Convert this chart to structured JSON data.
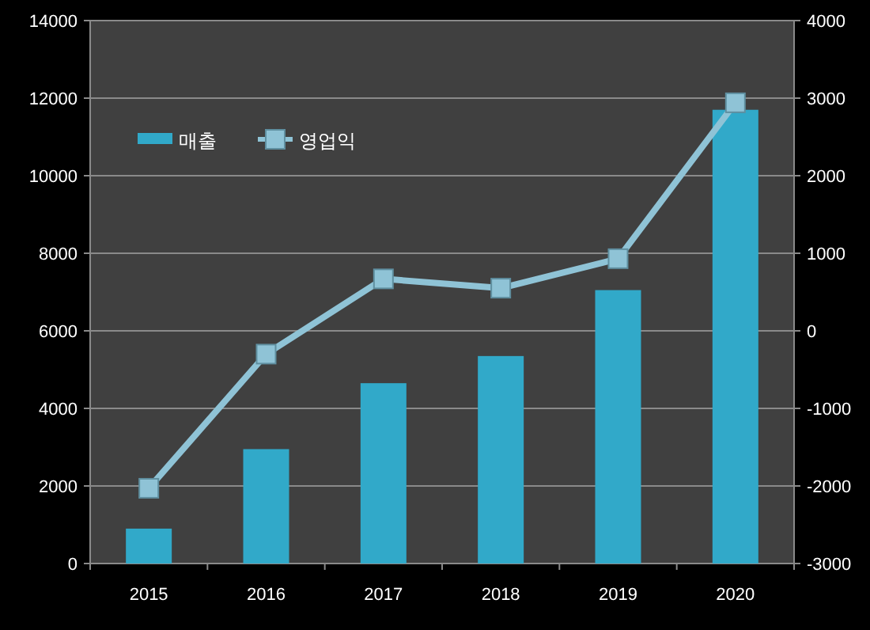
{
  "chart_data": {
    "type": "bar",
    "categories": [
      "2015",
      "2016",
      "2017",
      "2018",
      "2019",
      "2020"
    ],
    "series": [
      {
        "name": "매출",
        "color": "#31a9c9",
        "values": [
          900,
          2950,
          4650,
          5350,
          7050,
          11700
        ]
      },
      {
        "name": "영업익",
        "type": "line",
        "axis": "y2",
        "color": "#8fc3d6",
        "marker": "square",
        "values": [
          -2030,
          -300,
          670,
          550,
          930,
          2940
        ]
      }
    ],
    "ylim": [
      0,
      14000
    ],
    "yticks": [
      0,
      2000,
      4000,
      6000,
      8000,
      10000,
      12000,
      14000
    ],
    "y2lim": [
      -3000,
      4000
    ],
    "y2ticks": [
      -3000,
      -2000,
      -1000,
      0,
      1000,
      2000,
      3000,
      4000
    ],
    "grid": "y",
    "legend": "top left"
  }
}
